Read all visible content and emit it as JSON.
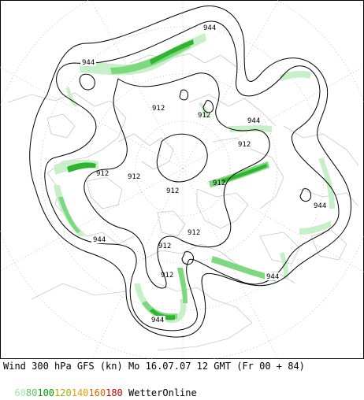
{
  "colors": {
    "background": "#ffffff",
    "coast": "#c8c8c8",
    "grid": "#bdbdbd",
    "contour": "#000000",
    "jet_60": "#c8f0c8",
    "jet_80": "#7ed87e",
    "jet_100": "#2fb42f"
  },
  "map": {
    "projection": "polar-stereographic",
    "contour_labels": [
      "944",
      "944",
      "912",
      "912",
      "944",
      "912",
      "912",
      "912",
      "912",
      "912",
      "944",
      "944",
      "912",
      "912",
      "944",
      "912",
      "944",
      "944"
    ]
  },
  "footer": {
    "title": "Wind 300 hPa GFS (kn) Mo 16.07.07 12 GMT (Fr 00 + 84)",
    "legend": [
      {
        "label": "60",
        "color": "#a8e6a8"
      },
      {
        "label": "80",
        "color": "#5cc85c"
      },
      {
        "label": "100",
        "color": "#00a000"
      },
      {
        "label": "120",
        "color": "#9cb400"
      },
      {
        "label": "140",
        "color": "#e0a000"
      },
      {
        "label": "160",
        "color": "#e06400"
      },
      {
        "label": "180",
        "color": "#d00000"
      }
    ],
    "brand": "WetterOnline"
  }
}
